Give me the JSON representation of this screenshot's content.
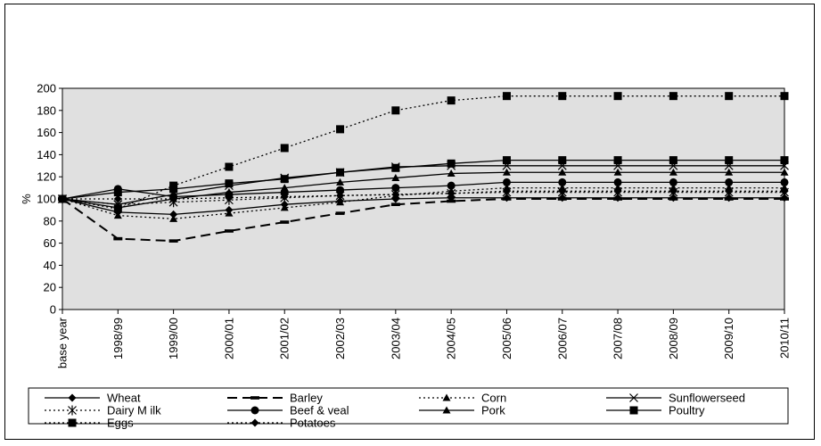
{
  "chart_data": {
    "type": "line",
    "ylabel": "%",
    "ylim": [
      0,
      200
    ],
    "yticks": [
      0,
      20,
      40,
      60,
      80,
      100,
      120,
      140,
      160,
      180,
      200
    ],
    "categories": [
      "base year",
      "1998/99",
      "1999/00",
      "2000/01",
      "2001/02",
      "2002/03",
      "2003/04",
      "2004/05",
      "2005/06",
      "2006/07",
      "2007/08",
      "2008/09",
      "2009/10",
      "2010/11"
    ],
    "grid": false,
    "legend_position": "bottom",
    "plot_background": "#e0e0e0",
    "series": [
      {
        "name": "Wheat",
        "dash": "solid",
        "marker": "diamond",
        "values": [
          100,
          88,
          86,
          90,
          95,
          98,
          100,
          101,
          101,
          101,
          101,
          101,
          101,
          101
        ]
      },
      {
        "name": "Barley",
        "dash": "longdash",
        "marker": "dash",
        "values": [
          100,
          64,
          62,
          71,
          79,
          87,
          95,
          98,
          100,
          100,
          100,
          100,
          100,
          100
        ]
      },
      {
        "name": "Corn",
        "dash": "dotted",
        "marker": "triangle",
        "values": [
          100,
          85,
          82,
          87,
          92,
          97,
          103,
          107,
          110,
          110,
          110,
          110,
          110,
          110
        ]
      },
      {
        "name": "Sunflowerseed",
        "dash": "solid",
        "marker": "x",
        "values": [
          100,
          95,
          104,
          112,
          119,
          124,
          129,
          130,
          130,
          130,
          130,
          130,
          130,
          130
        ]
      },
      {
        "name": "Dairy M ilk",
        "dash": "dotted",
        "marker": "asterisk",
        "values": [
          100,
          95,
          97,
          99,
          101,
          103,
          104,
          105,
          106,
          106,
          106,
          106,
          106,
          106
        ]
      },
      {
        "name": "Beef & veal",
        "dash": "solid",
        "marker": "circle",
        "values": [
          100,
          109,
          102,
          104,
          106,
          108,
          110,
          112,
          115,
          115,
          115,
          115,
          115,
          115
        ]
      },
      {
        "name": "Pork",
        "dash": "solid",
        "marker": "triangle",
        "values": [
          100,
          92,
          100,
          106,
          110,
          115,
          119,
          123,
          124,
          124,
          124,
          124,
          124,
          124
        ]
      },
      {
        "name": "Poultry",
        "dash": "solid",
        "marker": "square",
        "values": [
          100,
          106,
          109,
          114,
          118,
          124,
          128,
          132,
          135,
          135,
          135,
          135,
          135,
          135
        ]
      },
      {
        "name": "Eggs",
        "dash": "dotted",
        "marker": "square",
        "values": [
          100,
          91,
          112,
          129,
          146,
          163,
          180,
          189,
          193,
          193,
          193,
          193,
          193,
          193
        ]
      },
      {
        "name": "Potatoes",
        "dash": "dotted",
        "marker": "diamond",
        "values": [
          100,
          100,
          100,
          101,
          102,
          103,
          104,
          105,
          107,
          107,
          107,
          107,
          107,
          107
        ]
      }
    ]
  }
}
